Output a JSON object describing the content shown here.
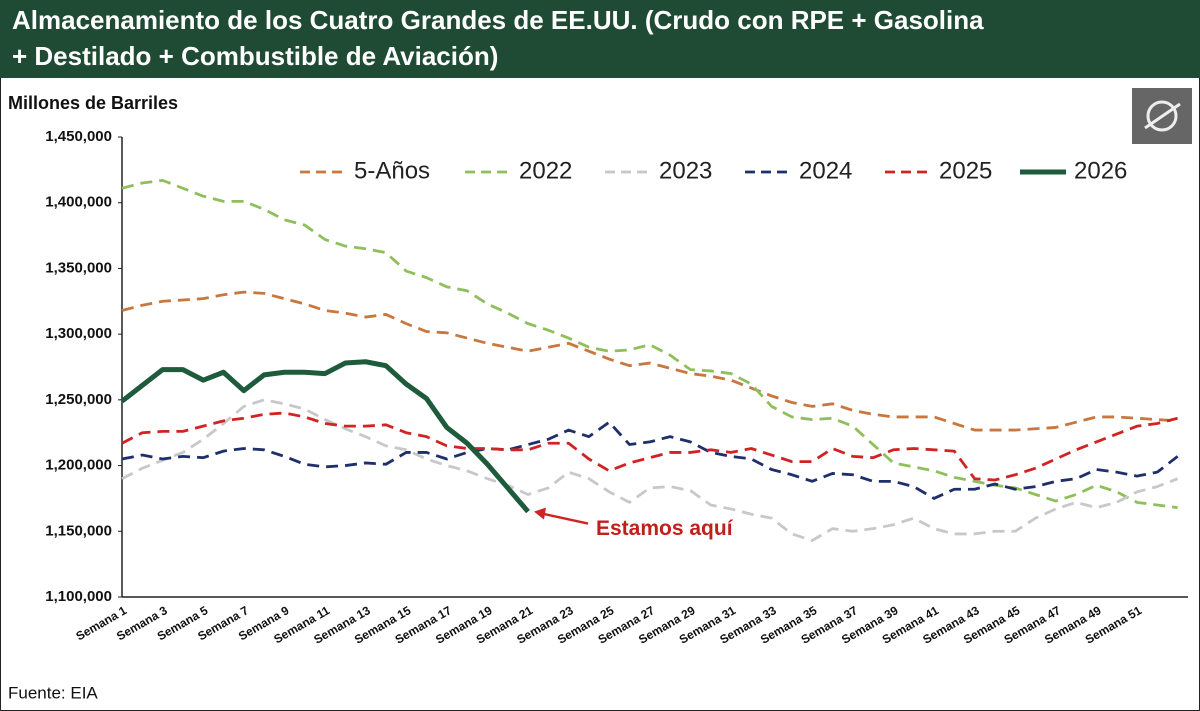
{
  "chart_data": {
    "type": "line",
    "title": "Almacenamiento de los Cuatro Grandes de EE.UU. (Crudo con RPE + Gasolina",
    "title_line2": "+ Destilado + Combustible de Aviación)",
    "y_label": "Millones de Barriles",
    "source": "Fuente: EIA",
    "annotation": "Estamos aquí",
    "legend": "top",
    "categories": [
      "Semana 1",
      null,
      "Semana 3",
      null,
      "Semana 5",
      null,
      "Semana 7",
      null,
      "Semana 9",
      null,
      "Semana 11",
      null,
      "Semana 13",
      null,
      "Semana 15",
      null,
      "Semana 17",
      null,
      "Semana 19",
      null,
      "Semana 21",
      null,
      "Semana 23",
      null,
      "Semana 25",
      null,
      "Semana 27",
      null,
      "Semana 29",
      null,
      "Semana 31",
      null,
      "Semana 33",
      null,
      "Semana 35",
      null,
      "Semana 37",
      null,
      "Semana 39",
      null,
      "Semana 41",
      null,
      "Semana 43",
      null,
      "Semana 45",
      null,
      "Semana 47",
      null,
      "Semana 49",
      null,
      "Semana 51",
      null,
      null
    ],
    "ylim": [
      1100000,
      1450000
    ],
    "yticks": [
      {
        "value": 1100000,
        "label": "1,100,000"
      },
      {
        "value": 1150000,
        "label": "1,150,000"
      },
      {
        "value": 1200000,
        "label": "1,200,000"
      },
      {
        "value": 1250000,
        "label": "1,250,000"
      },
      {
        "value": 1300000,
        "label": "1,300,000"
      },
      {
        "value": 1350000,
        "label": "1,350,000"
      },
      {
        "value": 1400000,
        "label": "1,400,000"
      },
      {
        "value": 1450000,
        "label": "1,450,000"
      }
    ],
    "grid": false,
    "series": [
      {
        "name": "5-Años",
        "color": "#c8773e",
        "style": "dashed",
        "values": [
          1318000,
          1322000,
          1325000,
          1326000,
          1327000,
          1330000,
          1332000,
          1331000,
          1327000,
          1323000,
          1318000,
          1316000,
          1313000,
          1315000,
          1308000,
          1302000,
          1301000,
          1297000,
          1293000,
          1290000,
          1287000,
          1290000,
          1293000,
          1287000,
          1281000,
          1276000,
          1278000,
          1274000,
          1270000,
          1268000,
          1265000,
          1259000,
          1253000,
          1248000,
          1245000,
          1247000,
          1242000,
          1239000,
          1237000,
          1237000,
          1237000,
          1232000,
          1227000,
          1227000,
          1227000,
          1228000,
          1229000,
          1233000,
          1237000,
          1237000,
          1236000,
          1235000,
          1234000
        ]
      },
      {
        "name": "2022",
        "color": "#8fbf5a",
        "style": "dashed",
        "values": [
          1411000,
          1415000,
          1417000,
          1411000,
          1405000,
          1401000,
          1401000,
          1395000,
          1387000,
          1383000,
          1372000,
          1367000,
          1365000,
          1362000,
          1348000,
          1343000,
          1336000,
          1333000,
          1323000,
          1316000,
          1308000,
          1303000,
          1297000,
          1290000,
          1287000,
          1288000,
          1292000,
          1284000,
          1273000,
          1272000,
          1270000,
          1262000,
          1245000,
          1237000,
          1235000,
          1236000,
          1230000,
          1216000,
          1202000,
          1199000,
          1196000,
          1191000,
          1188000,
          1185000,
          1183000,
          1178000,
          1173000,
          1178000,
          1185000,
          1180000,
          1172000,
          1170000,
          1168000
        ]
      },
      {
        "name": "2023",
        "color": "#c8c8c8",
        "style": "dashed",
        "values": [
          1190000,
          1198000,
          1204000,
          1210000,
          1220000,
          1232000,
          1245000,
          1250000,
          1247000,
          1243000,
          1235000,
          1228000,
          1222000,
          1215000,
          1212000,
          1205000,
          1200000,
          1196000,
          1190000,
          1185000,
          1178000,
          1183000,
          1195000,
          1190000,
          1180000,
          1172000,
          1183000,
          1184000,
          1181000,
          1170000,
          1167000,
          1163000,
          1160000,
          1148000,
          1143000,
          1152000,
          1150000,
          1152000,
          1155000,
          1160000,
          1152000,
          1148000,
          1148000,
          1150000,
          1150000,
          1160000,
          1167000,
          1172000,
          1168000,
          1172000,
          1180000,
          1184000,
          1190000
        ]
      },
      {
        "name": "2024",
        "color": "#1f2f6b",
        "style": "dashed",
        "values": [
          1205000,
          1208000,
          1205000,
          1207000,
          1206000,
          1211000,
          1213000,
          1212000,
          1207000,
          1201000,
          1199000,
          1200000,
          1202000,
          1201000,
          1210000,
          1210000,
          1205000,
          1210000,
          1213000,
          1212000,
          1216000,
          1220000,
          1227000,
          1222000,
          1233000,
          1216000,
          1218000,
          1222000,
          1218000,
          1210000,
          1207000,
          1205000,
          1197000,
          1193000,
          1188000,
          1194000,
          1193000,
          1188000,
          1188000,
          1184000,
          1175000,
          1182000,
          1182000,
          1186000,
          1182000,
          1184000,
          1188000,
          1190000,
          1197000,
          1195000,
          1192000,
          1195000,
          1207000
        ]
      },
      {
        "name": "2025",
        "color": "#d02424",
        "style": "dashed",
        "values": [
          1217000,
          1225000,
          1226000,
          1226000,
          1230000,
          1234000,
          1236000,
          1239000,
          1240000,
          1237000,
          1232000,
          1230000,
          1230000,
          1231000,
          1225000,
          1222000,
          1215000,
          1213000,
          1213000,
          1212000,
          1212000,
          1217000,
          1217000,
          1205000,
          1196000,
          1202000,
          1206000,
          1210000,
          1210000,
          1212000,
          1210000,
          1213000,
          1208000,
          1203000,
          1203000,
          1213000,
          1207000,
          1206000,
          1212000,
          1213000,
          1212000,
          1211000,
          1190000,
          1189000,
          1193000,
          1198000,
          1205000,
          1212000,
          1218000,
          1224000,
          1230000,
          1232000,
          1236000
        ]
      },
      {
        "name": "2026",
        "color": "#1e5a3c",
        "style": "solid",
        "values": [
          1249000,
          1261000,
          1273000,
          1273000,
          1265000,
          1271000,
          1257000,
          1269000,
          1271000,
          1271000,
          1270000,
          1278000,
          1279000,
          1276000,
          1262000,
          1251000,
          1229000,
          1217000,
          1201000,
          1183000,
          1165000,
          null,
          null,
          null,
          null,
          null,
          null,
          null,
          null,
          null,
          null,
          null,
          null,
          null,
          null,
          null,
          null,
          null,
          null,
          null,
          null,
          null,
          null,
          null,
          null,
          null,
          null,
          null,
          null,
          null,
          null,
          null,
          null
        ]
      }
    ]
  }
}
